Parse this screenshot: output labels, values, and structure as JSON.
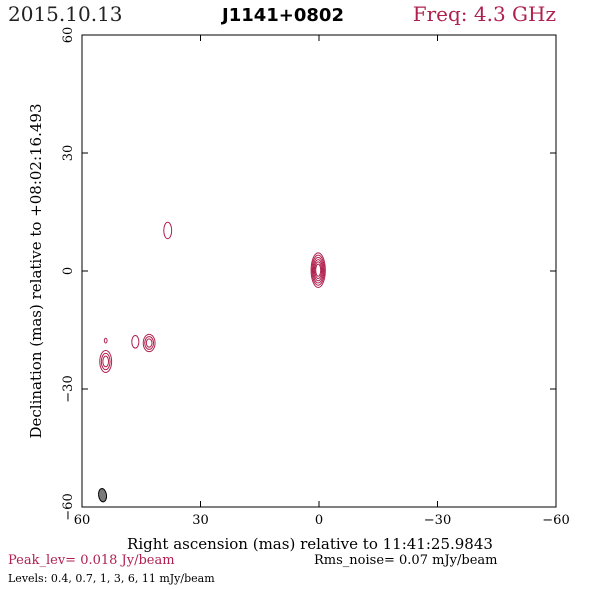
{
  "header": {
    "date": "2015.10.13",
    "source": "J1141+0802",
    "freq": "Freq: 4.3 GHz"
  },
  "footer": {
    "peak": "Peak_lev=  0.018 Jy/beam",
    "rms": "Rms_noise= 0.07 mJy/beam",
    "levels": "Levels: 0.4,  0.7,    1,    3,    6,   11  mJy/beam"
  },
  "colors": {
    "contour": "#b0204e",
    "frame": "#000000",
    "beam_fill": "#7a7a7a"
  },
  "chart_data": {
    "type": "contour",
    "xlabel": "Right ascension (mas) relative to 11:41:25.9843",
    "ylabel": "Declination (mas) relative to +08:02:16.493",
    "xlim": [
      60,
      -60
    ],
    "ylim": [
      -60,
      60
    ],
    "x_ticks": [
      60,
      30,
      0,
      -30,
      -60
    ],
    "y_ticks": [
      60,
      30,
      0,
      -30,
      -60
    ],
    "x_tick_labels": [
      "60",
      "30",
      "0",
      "−30",
      "−60"
    ],
    "y_tick_labels": [
      "60",
      "30",
      "0",
      "−30",
      "−60"
    ],
    "contour_levels_mJy_per_beam": [
      0.4,
      0.7,
      1,
      3,
      6,
      11
    ],
    "peak_Jy_per_beam": 0.018,
    "rms_noise_mJy_per_beam": 0.07,
    "components": [
      {
        "x": 0.2,
        "y": 0.2,
        "rx": 1.8,
        "ry": 4.4,
        "levels": 6
      },
      {
        "x": 38.3,
        "y": 10.3,
        "rx": 1.0,
        "ry": 2.1,
        "levels": 1
      },
      {
        "x": 43.0,
        "y": -18.3,
        "rx": 1.5,
        "ry": 2.2,
        "levels": 3
      },
      {
        "x": 46.5,
        "y": -18.0,
        "rx": 0.9,
        "ry": 1.6,
        "levels": 1
      },
      {
        "x": 54.0,
        "y": -23.0,
        "rx": 1.5,
        "ry": 2.8,
        "levels": 3
      },
      {
        "x": 54.0,
        "y": -17.7,
        "rx": 0.35,
        "ry": 0.6,
        "levels": 1
      }
    ],
    "beam": {
      "x": 54.8,
      "y": -57.0,
      "rx": 1.0,
      "ry": 1.7
    }
  }
}
